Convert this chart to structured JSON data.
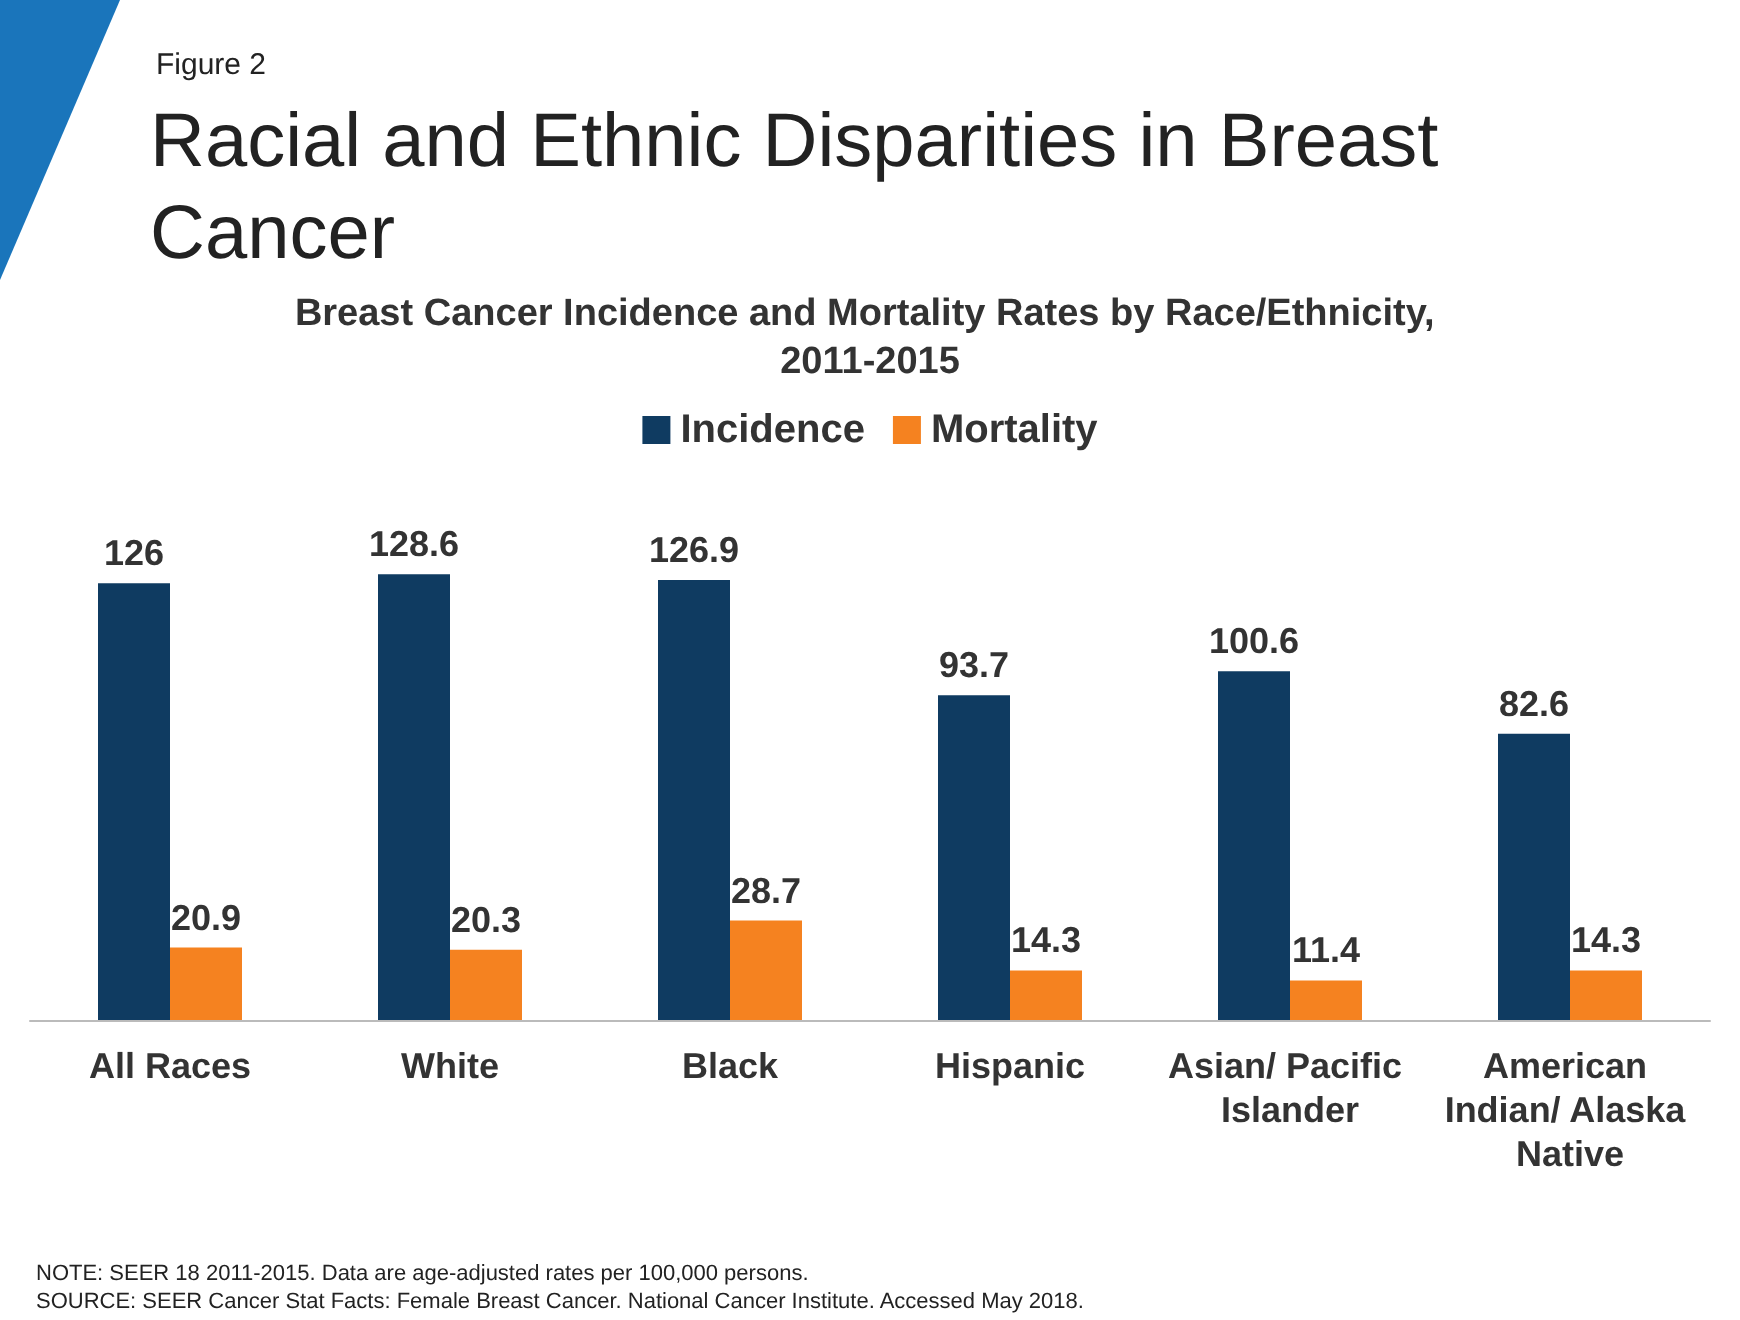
{
  "chart_data": {
    "type": "bar",
    "title": "Racial and Ethnic Disparities in Breast Cancer",
    "subtitle": "Breast Cancer Incidence and Mortality Rates by Race/Ethnicity, 2011-2015",
    "categories": [
      "All Races",
      "White",
      "Black",
      "Hispanic",
      "Asian/ Pacific Islander",
      "American Indian/ Alaska Native"
    ],
    "series": [
      {
        "name": "Incidence",
        "color": "#0f3b61",
        "values": [
          126,
          128.6,
          126.9,
          93.7,
          100.6,
          82.6
        ]
      },
      {
        "name": "Mortality",
        "color": "#f58220",
        "values": [
          20.9,
          20.3,
          28.7,
          14.3,
          11.4,
          14.3
        ]
      }
    ],
    "data_labels": true,
    "legend": "top",
    "annotations": [
      "Figure 2",
      "NOTE: SEER 18 2011-2015. Data are age-adjusted rates per 100,000 persons.",
      "SOURCE: SEER Cancer Stat Facts: Female Breast Cancer. National Cancer Institute. Accessed May 2018."
    ]
  }
}
